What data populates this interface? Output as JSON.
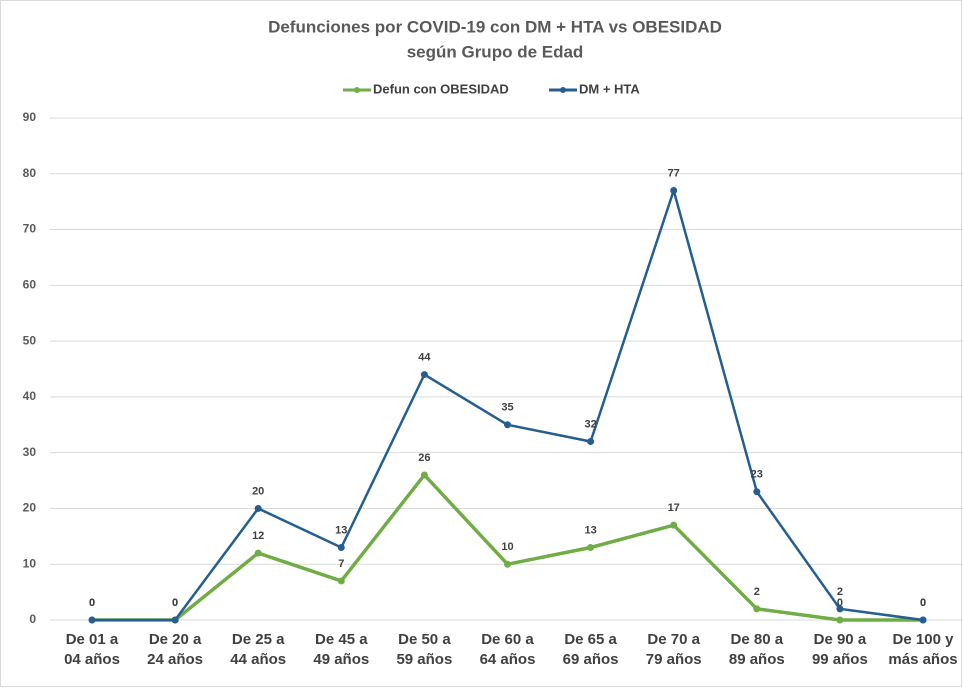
{
  "chart_data": {
    "type": "line",
    "title": "Defunciones por COVID-19 con DM + HTA vs OBESIDAD",
    "subtitle": "según Grupo de Edad",
    "categories": [
      [
        "De 01 a",
        "04 años"
      ],
      [
        "De 20 a",
        "24 años"
      ],
      [
        "De 25 a",
        "44 años"
      ],
      [
        "De 45 a",
        "49 años"
      ],
      [
        "De 50 a",
        "59 años"
      ],
      [
        "De 60 a",
        "64 años"
      ],
      [
        "De 65 a",
        "69 años"
      ],
      [
        "De 70 a",
        "79 años"
      ],
      [
        "De 80 a",
        "89 años"
      ],
      [
        "De 90 a",
        "99 años"
      ],
      [
        "De 100 y",
        "más años"
      ]
    ],
    "series": [
      {
        "name": "Defun con OBESIDAD",
        "color": "#70ad47",
        "values": [
          0,
          0,
          12,
          7,
          26,
          10,
          13,
          17,
          2,
          0,
          0
        ]
      },
      {
        "name": "DM + HTA",
        "color": "#255e91",
        "values": [
          0,
          0,
          20,
          13,
          44,
          35,
          32,
          77,
          23,
          2,
          0
        ]
      }
    ],
    "ylim": [
      0,
      90
    ],
    "yticks": [
      0,
      10,
      20,
      30,
      40,
      50,
      60,
      70,
      80,
      90
    ],
    "grid": true,
    "legend": "top"
  }
}
